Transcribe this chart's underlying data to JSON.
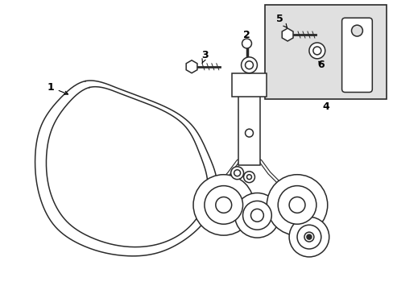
{
  "background_color": "#ffffff",
  "line_color": "#2a2a2a",
  "box_bg_color": "#e0e0e0",
  "figsize": [
    4.89,
    3.6
  ],
  "dpi": 100
}
